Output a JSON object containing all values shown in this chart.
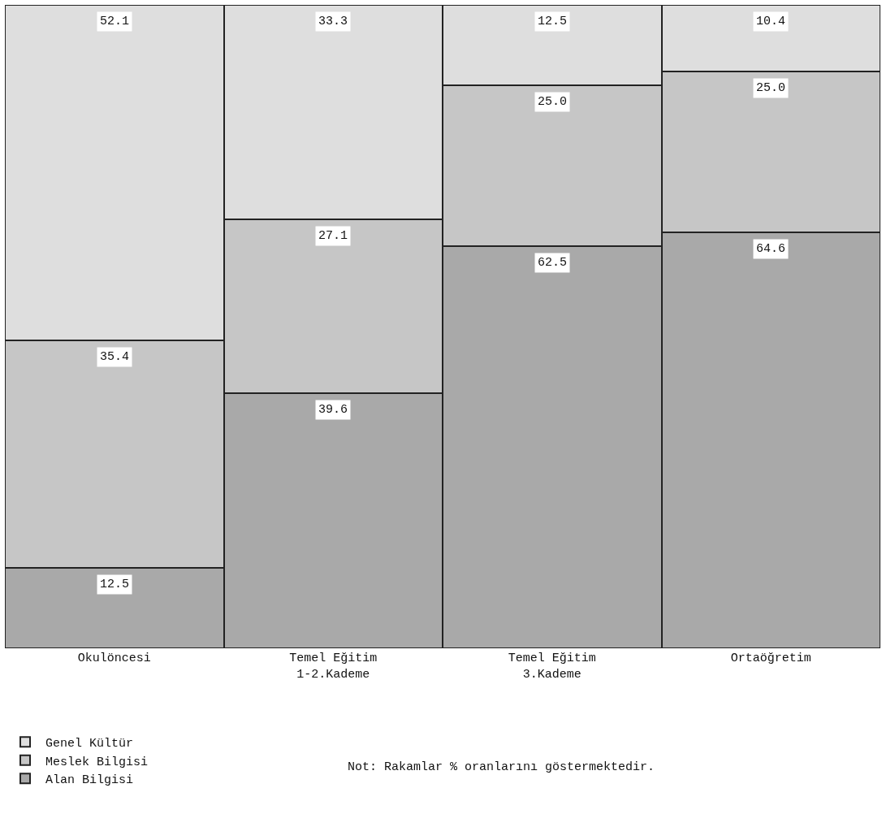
{
  "chart_data": {
    "type": "bar",
    "stacked": true,
    "categories": [
      "Okulöncesi",
      "Temel Eğitim\n1-2.Kademe",
      "Temel Eğitim\n3.Kademe",
      "Ortaöğretim"
    ],
    "series": [
      {
        "name": "Alan Bilgisi",
        "color": "#a9a9a9",
        "values": [
          12.5,
          39.6,
          62.5,
          64.6
        ],
        "value_labels": [
          "12.5",
          "39.6",
          "62.5",
          "64.6"
        ]
      },
      {
        "name": "Meslek Bilgisi",
        "color": "#c6c6c6",
        "values": [
          35.4,
          27.1,
          25.0,
          25.0
        ],
        "value_labels": [
          "35.4",
          "27.1",
          "25.0",
          "25.0"
        ]
      },
      {
        "name": "Genel Kültür",
        "color": "#dedede",
        "values": [
          52.1,
          33.3,
          12.5,
          10.4
        ],
        "value_labels": [
          "52.1",
          "33.3",
          "12.5",
          "10.4"
        ]
      }
    ],
    "ylim": [
      0,
      100
    ],
    "tick_labels": "x",
    "legend": "bottom left",
    "annotations": [
      "Not: Rakamlar % oranlarını göstermektedir."
    ]
  }
}
